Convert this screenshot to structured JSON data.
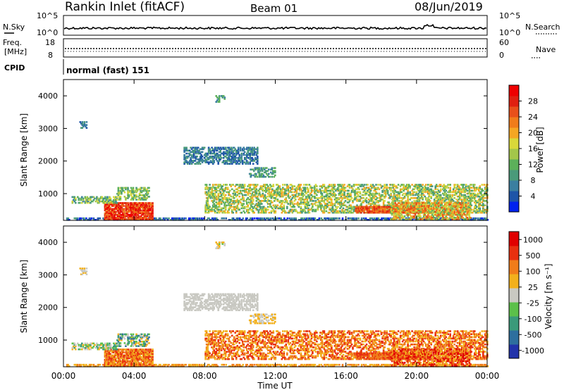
{
  "header": {
    "station": "Rankin Inlet (fitACF)",
    "beam": "Beam 01",
    "date": "08/Jun/2019"
  },
  "sky_panel": {
    "left_label": "N.Sky",
    "right_label": "N.Search",
    "ticks_left": [
      "10^5",
      "10^0"
    ],
    "ticks_right": [
      "10^5",
      "10^0"
    ]
  },
  "freq_panel": {
    "left_label_1": "Freq.",
    "left_label_2": "[MHz]",
    "ticks_left": [
      "18",
      "8"
    ],
    "right_label": "Nave",
    "ticks_right": [
      "60",
      "0"
    ]
  },
  "cpid": {
    "label": "CPID",
    "value": "normal (fast) 151"
  },
  "chart_data": [
    {
      "type": "heatmap",
      "name": "power",
      "ylabel": "Slant Range [km]",
      "ylim": [
        180,
        4500
      ],
      "yticks": [
        "1000",
        "2000",
        "3000",
        "4000"
      ],
      "colorbar": {
        "label": "Power [dB]",
        "ticks": [
          "4",
          "8",
          "12",
          "16",
          "20",
          "24",
          "28"
        ],
        "colors": [
          "#0022ee",
          "#1e55a8",
          "#3b7fa0",
          "#4a9a7a",
          "#5cb05a",
          "#a3c64a",
          "#d9d83a",
          "#f5a623",
          "#f07c1a",
          "#e8501a",
          "#e02010",
          "#ee0000"
        ]
      }
    },
    {
      "type": "heatmap",
      "name": "velocity",
      "ylabel": "Slant Range [km]",
      "ylim": [
        180,
        4500
      ],
      "yticks": [
        "1000",
        "2000",
        "3000",
        "4000"
      ],
      "colorbar": {
        "label": "Velocity [m s⁻¹]",
        "ticks": [
          "1000",
          "500",
          "100",
          "25",
          "-25",
          "-100",
          "-500",
          "-1000"
        ],
        "colors": [
          "#2233aa",
          "#2e6f9e",
          "#3a9a7a",
          "#5cc04a",
          "#c9c9c2",
          "#f2b01c",
          "#f07c1a",
          "#e83010",
          "#e00000"
        ]
      }
    }
  ],
  "x_axis": {
    "ticks": [
      "00:00",
      "04:00",
      "08:00",
      "12:00",
      "16:00",
      "20:00",
      "00:00"
    ],
    "label": "Time UT"
  }
}
